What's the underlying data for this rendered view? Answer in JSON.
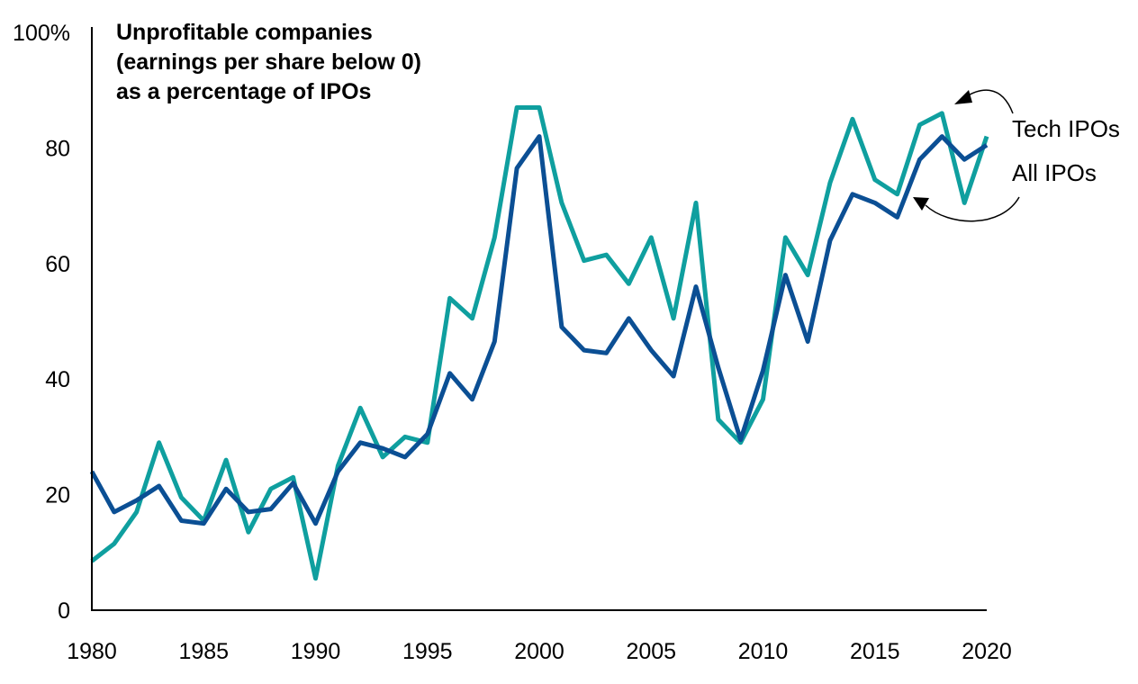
{
  "chart_data": {
    "type": "line",
    "title_lines": [
      "Unprofitable companies",
      "(earnings per share below 0)",
      "as a percentage of IPOs"
    ],
    "xlabel": "",
    "ylabel": "",
    "xlim": [
      1980,
      2020
    ],
    "ylim": [
      0,
      100
    ],
    "y_ticks": [
      {
        "value": 0,
        "label": "0"
      },
      {
        "value": 20,
        "label": "20"
      },
      {
        "value": 40,
        "label": "40"
      },
      {
        "value": 60,
        "label": "60"
      },
      {
        "value": 80,
        "label": "80"
      },
      {
        "value": 100,
        "label": "100%"
      }
    ],
    "x_ticks": [
      {
        "value": 1980,
        "label": "1980"
      },
      {
        "value": 1985,
        "label": "1985"
      },
      {
        "value": 1990,
        "label": "1990"
      },
      {
        "value": 1995,
        "label": "1995"
      },
      {
        "value": 2000,
        "label": "2000"
      },
      {
        "value": 2005,
        "label": "2005"
      },
      {
        "value": 2010,
        "label": "2010"
      },
      {
        "value": 2015,
        "label": "2015"
      },
      {
        "value": 2020,
        "label": "2020"
      }
    ],
    "grid": false,
    "x": [
      1980,
      1981,
      1982,
      1983,
      1984,
      1985,
      1986,
      1987,
      1988,
      1989,
      1990,
      1991,
      1992,
      1993,
      1994,
      1995,
      1996,
      1997,
      1998,
      1999,
      2000,
      2001,
      2002,
      2003,
      2004,
      2005,
      2006,
      2007,
      2008,
      2009,
      2010,
      2011,
      2012,
      2013,
      2014,
      2015,
      2016,
      2017,
      2018,
      2019,
      2020
    ],
    "series": [
      {
        "name": "Tech IPOs",
        "color": "#0f9f9f",
        "values": [
          8.5,
          11.5,
          17,
          29,
          19.5,
          15.5,
          26,
          13.5,
          21,
          23,
          5.5,
          25,
          35,
          26.5,
          30,
          29,
          54,
          50.5,
          64.5,
          87,
          87,
          70.5,
          60.5,
          61.5,
          56.5,
          64.5,
          50.5,
          70.5,
          33,
          29,
          36.5,
          64.5,
          58,
          74,
          85,
          74.5,
          72,
          84,
          86,
          70.5,
          82
        ]
      },
      {
        "name": "All IPOs",
        "color": "#0b4f94",
        "values": [
          24,
          17,
          19,
          21.5,
          15.5,
          15,
          21,
          17,
          17.5,
          22,
          15,
          24,
          29,
          28,
          26.5,
          30.5,
          41,
          36.5,
          46.5,
          76.5,
          82,
          49,
          45,
          44.5,
          50.5,
          45,
          40.5,
          56,
          42,
          29.5,
          41.5,
          58,
          46.5,
          64,
          72,
          70.5,
          68,
          78,
          82,
          78,
          80.5
        ]
      }
    ],
    "legend": {
      "placement": "right",
      "entries": [
        "Tech IPOs",
        "All IPOs"
      ]
    }
  }
}
